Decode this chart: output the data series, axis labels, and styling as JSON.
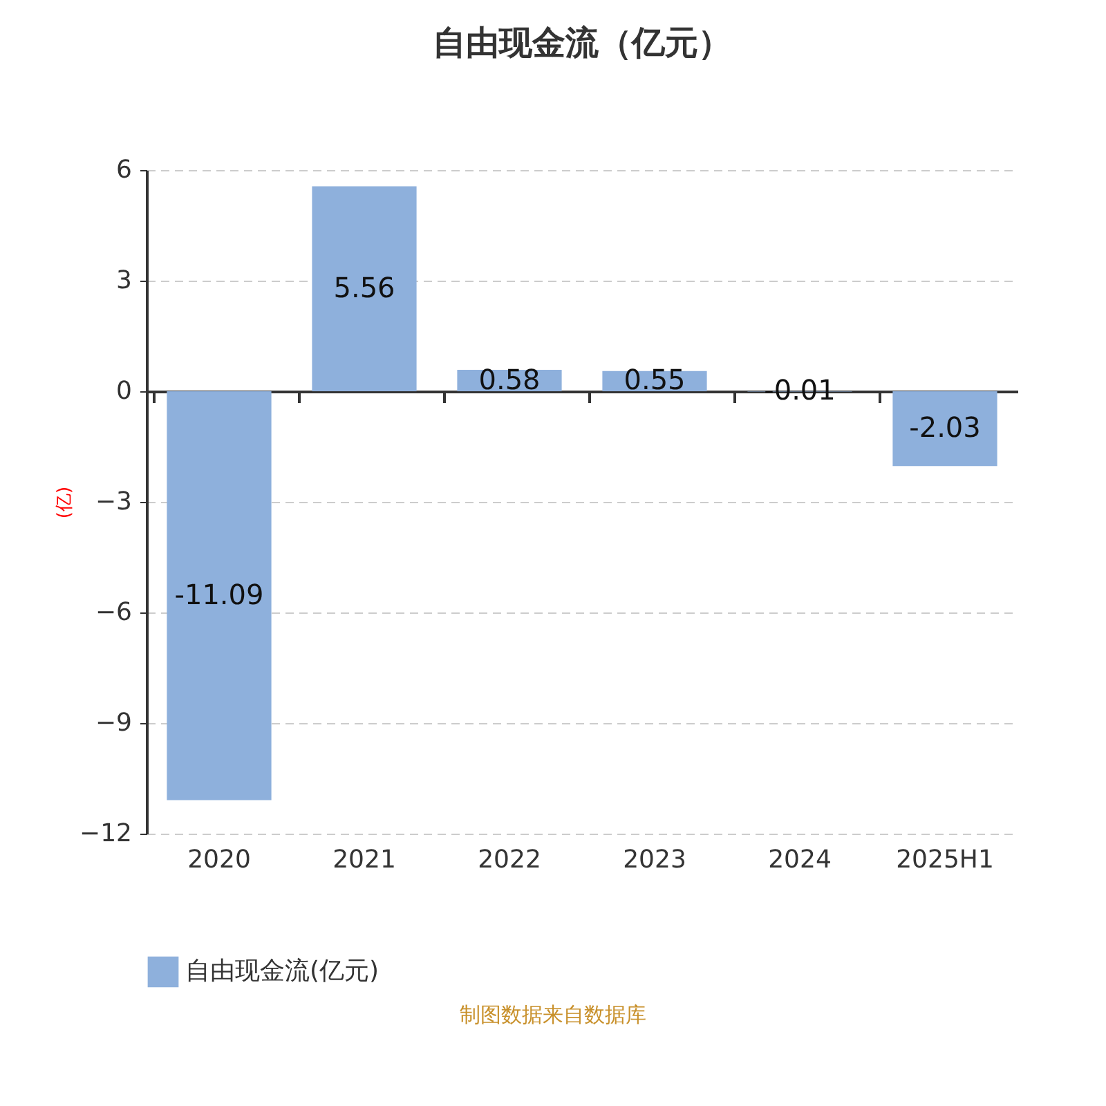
{
  "chart_data": {
    "type": "bar",
    "title": "自由现金流（亿元）",
    "ylabel": "(亿)",
    "categories": [
      "2020",
      "2021",
      "2022",
      "2023",
      "2024",
      "2025H1"
    ],
    "series": [
      {
        "name": "自由现金流(亿元)",
        "color": "#8eb0dc",
        "values": [
          -11.09,
          5.56,
          0.58,
          0.55,
          -0.01,
          -2.03
        ]
      }
    ],
    "ylim": [
      -12,
      6
    ],
    "yticks": [
      -12,
      -9,
      -6,
      -3,
      0,
      3,
      6
    ],
    "grid": "y",
    "legend": "bottom",
    "data_labels": true,
    "annotations": [
      "制图数据来自数据库"
    ]
  }
}
